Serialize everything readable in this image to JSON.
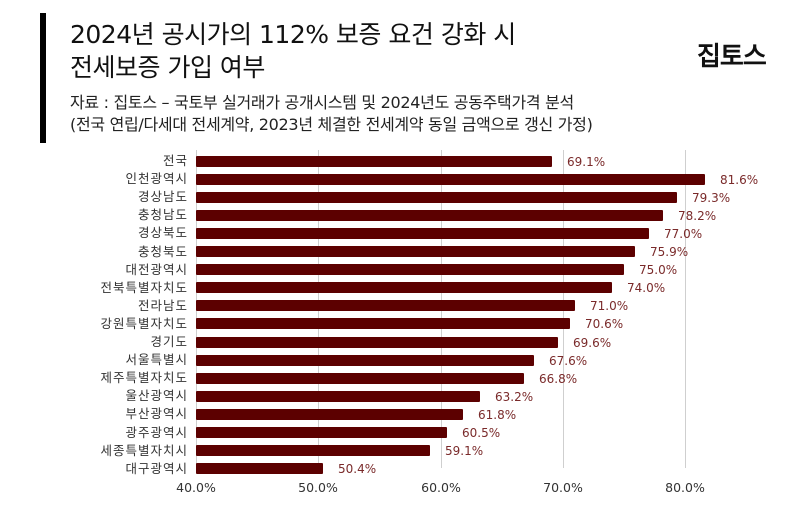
{
  "header": {
    "title_line1": "2024년 공시가의 112% 보증 요건 강화 시",
    "title_line2": "전세보증 가입 여부",
    "logo": "집토스",
    "source_line1": "자료 : 집토스 – 국토부 실거래가 공개시스템 및 2024년도 공동주택가격 분석",
    "source_line2": "(전국 연립/다세대 전세계약, 2023년 체결한 전세계약 동일 금액으로 갱신 가정)"
  },
  "colors": {
    "bar": "#5c0000",
    "value_label": "#7a2a2a",
    "accent": "#000000",
    "grid": "#cfcfcf"
  },
  "chart_data": {
    "type": "bar",
    "orientation": "horizontal",
    "title": "2024년 공시가의 112% 보증 요건 강화 시 전세보증 가입 여부",
    "xlabel": "",
    "ylabel": "",
    "xlim": [
      40,
      80
    ],
    "grid": true,
    "legend": null,
    "categories": [
      "전국",
      "인천광역시",
      "경상남도",
      "충청남도",
      "경상북도",
      "충청북도",
      "대전광역시",
      "전북특별자치도",
      "전라남도",
      "강원특별자치도",
      "경기도",
      "서울특별시",
      "제주특별자치도",
      "울산광역시",
      "부산광역시",
      "광주광역시",
      "세종특별자치시",
      "대구광역시"
    ],
    "values": [
      69.1,
      81.6,
      79.3,
      78.2,
      77.0,
      75.9,
      75.0,
      74.0,
      71.0,
      70.6,
      69.6,
      67.6,
      66.8,
      63.2,
      61.8,
      60.5,
      59.1,
      50.4
    ],
    "value_labels": [
      "69.1%",
      "81.6%",
      "79.3%",
      "78.2%",
      "77.0%",
      "75.9%",
      "75.0%",
      "74.0%",
      "71.0%",
      "70.6%",
      "69.6%",
      "67.6%",
      "66.8%",
      "63.2%",
      "61.8%",
      "60.5%",
      "59.1%",
      "50.4%"
    ],
    "x_ticks": [
      "40.0%",
      "50.0%",
      "60.0%",
      "70.0%",
      "80.0%"
    ],
    "x_tick_values": [
      40,
      50,
      60,
      70,
      80
    ]
  }
}
